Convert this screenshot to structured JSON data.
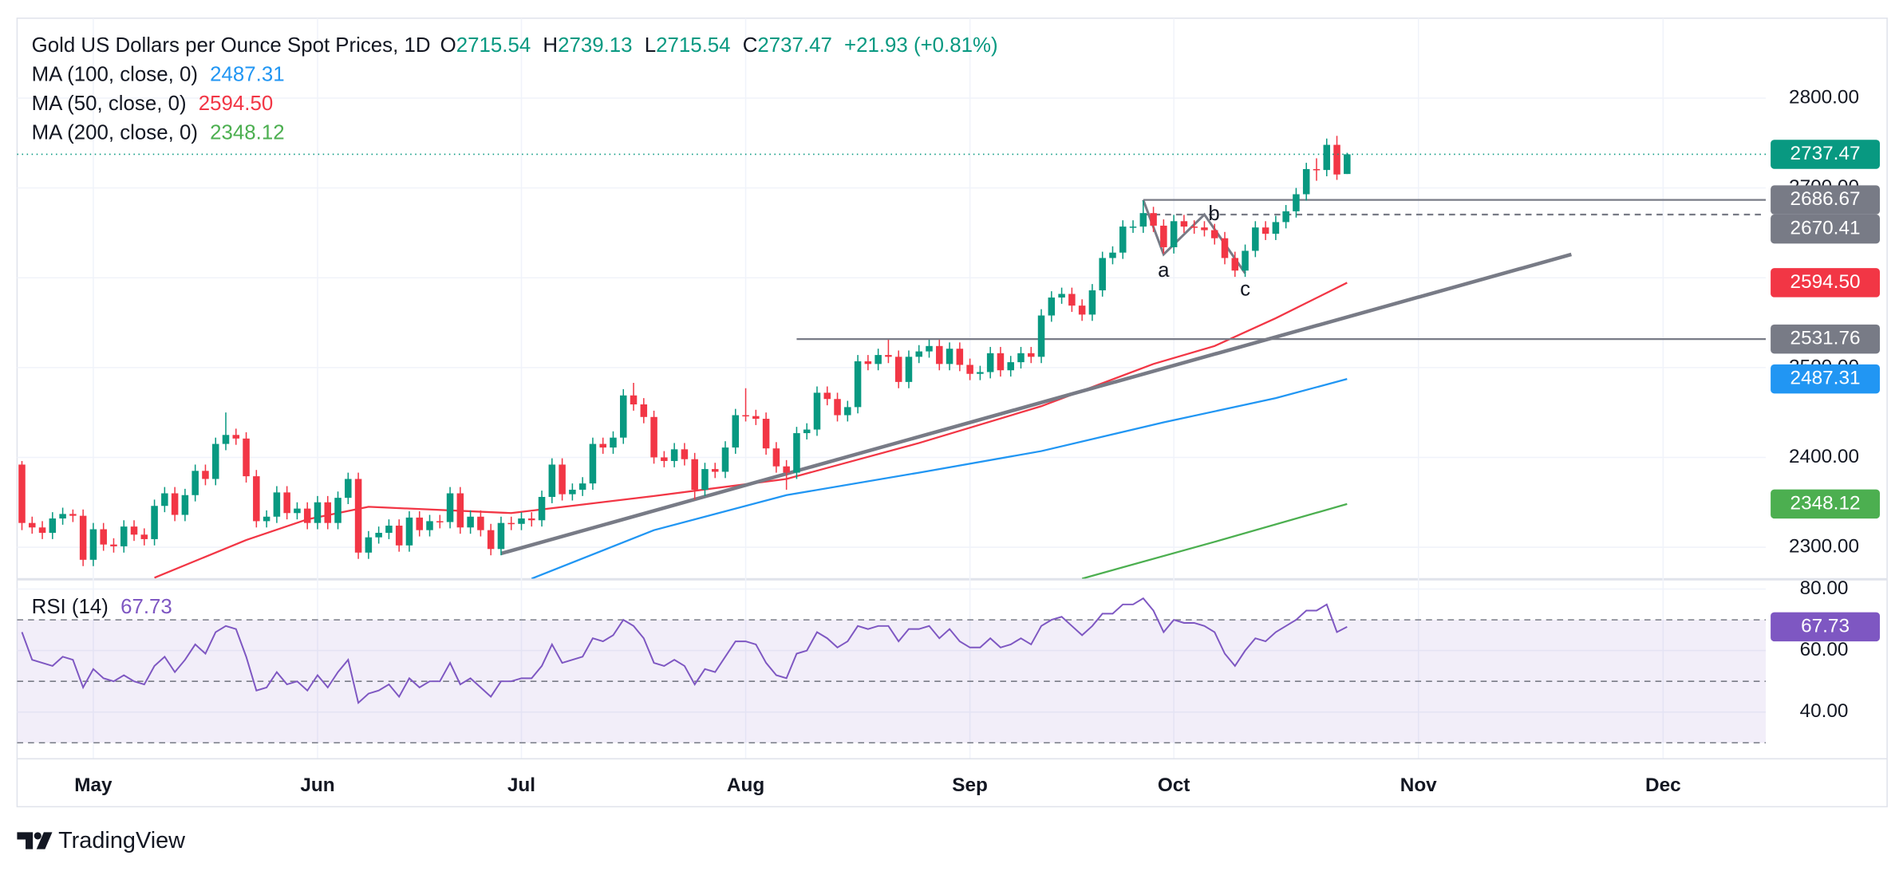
{
  "chart_data": {
    "type": "candlestick",
    "legend": {
      "title": "Gold US Dollars per Ounce Spot Prices, 1D",
      "ohlc_letters": [
        "O",
        "H",
        "L",
        "C"
      ],
      "change": "+21.93 (+0.81%)"
    },
    "up_color": "#089981",
    "down_color": "#f23645",
    "ylim": [
      2265,
      2889
    ],
    "yticks": [
      {
        "value": 2300,
        "label": "2300.00"
      },
      {
        "value": 2400,
        "label": "2400.00"
      },
      {
        "value": 2500,
        "label": "2500.00"
      },
      {
        "value": 2600,
        "label": "2600.00"
      },
      {
        "value": 2700,
        "label": "2700.00"
      },
      {
        "value": 2800,
        "label": "2800.00"
      }
    ],
    "xticks": [
      {
        "value": 7,
        "label": "May"
      },
      {
        "value": 29,
        "label": "Jun"
      },
      {
        "value": 49,
        "label": "Jul"
      },
      {
        "value": 71,
        "label": "Aug"
      },
      {
        "value": 93,
        "label": "Sep"
      },
      {
        "value": 113,
        "label": "Oct"
      },
      {
        "value": 137,
        "label": "Nov"
      },
      {
        "value": 161,
        "label": "Dec"
      }
    ],
    "grid": true,
    "ohlc": [
      [
        2392,
        2396,
        2319,
        2327
      ],
      [
        2327,
        2334,
        2315,
        2322
      ],
      [
        2322,
        2329,
        2309,
        2316
      ],
      [
        2316,
        2339,
        2309,
        2332
      ],
      [
        2332,
        2344,
        2325,
        2337
      ],
      [
        2337,
        2342,
        2328,
        2335
      ],
      [
        2335,
        2342,
        2279,
        2286
      ],
      [
        2286,
        2327,
        2279,
        2320
      ],
      [
        2320,
        2327,
        2296,
        2303
      ],
      [
        2303,
        2310,
        2294,
        2301
      ],
      [
        2301,
        2330,
        2294,
        2323
      ],
      [
        2323,
        2330,
        2307,
        2314
      ],
      [
        2314,
        2321,
        2302,
        2309
      ],
      [
        2309,
        2353,
        2302,
        2346
      ],
      [
        2346,
        2367,
        2339,
        2360
      ],
      [
        2360,
        2367,
        2329,
        2336
      ],
      [
        2336,
        2365,
        2329,
        2358
      ],
      [
        2358,
        2392,
        2351,
        2385
      ],
      [
        2385,
        2392,
        2369,
        2376
      ],
      [
        2376,
        2422,
        2369,
        2415
      ],
      [
        2415,
        2450,
        2408,
        2425
      ],
      [
        2425,
        2432,
        2414,
        2421
      ],
      [
        2421,
        2428,
        2372,
        2379
      ],
      [
        2379,
        2386,
        2322,
        2329
      ],
      [
        2329,
        2341,
        2322,
        2334
      ],
      [
        2334,
        2368,
        2327,
        2361
      ],
      [
        2361,
        2368,
        2331,
        2338
      ],
      [
        2338,
        2350,
        2331,
        2343
      ],
      [
        2343,
        2350,
        2320,
        2327
      ],
      [
        2327,
        2357,
        2320,
        2350
      ],
      [
        2350,
        2357,
        2320,
        2327
      ],
      [
        2327,
        2362,
        2320,
        2355
      ],
      [
        2355,
        2383,
        2348,
        2376
      ],
      [
        2376,
        2383,
        2287,
        2294
      ],
      [
        2294,
        2318,
        2287,
        2311
      ],
      [
        2311,
        2323,
        2304,
        2316
      ],
      [
        2316,
        2331,
        2309,
        2324
      ],
      [
        2324,
        2331,
        2295,
        2302
      ],
      [
        2302,
        2340,
        2295,
        2333
      ],
      [
        2333,
        2340,
        2312,
        2319
      ],
      [
        2319,
        2336,
        2312,
        2329
      ],
      [
        2329,
        2336,
        2321,
        2328
      ],
      [
        2328,
        2367,
        2321,
        2360
      ],
      [
        2360,
        2367,
        2315,
        2322
      ],
      [
        2322,
        2341,
        2315,
        2334
      ],
      [
        2334,
        2341,
        2312,
        2319
      ],
      [
        2319,
        2326,
        2291,
        2298
      ],
      [
        2298,
        2334,
        2291,
        2327
      ],
      [
        2327,
        2334,
        2319,
        2326
      ],
      [
        2326,
        2339,
        2319,
        2332
      ],
      [
        2332,
        2339,
        2323,
        2330
      ],
      [
        2330,
        2363,
        2323,
        2356
      ],
      [
        2356,
        2399,
        2349,
        2392
      ],
      [
        2392,
        2399,
        2352,
        2359
      ],
      [
        2359,
        2371,
        2352,
        2364
      ],
      [
        2364,
        2378,
        2357,
        2371
      ],
      [
        2371,
        2422,
        2364,
        2415
      ],
      [
        2415,
        2422,
        2404,
        2411
      ],
      [
        2411,
        2429,
        2404,
        2422
      ],
      [
        2422,
        2476,
        2415,
        2469
      ],
      [
        2469,
        2483,
        2452,
        2459
      ],
      [
        2459,
        2466,
        2438,
        2445
      ],
      [
        2445,
        2452,
        2393,
        2400
      ],
      [
        2400,
        2407,
        2389,
        2396
      ],
      [
        2396,
        2416,
        2389,
        2409
      ],
      [
        2409,
        2416,
        2391,
        2398
      ],
      [
        2398,
        2405,
        2353,
        2364
      ],
      [
        2364,
        2394,
        2357,
        2387
      ],
      [
        2387,
        2394,
        2377,
        2384
      ],
      [
        2384,
        2418,
        2377,
        2411
      ],
      [
        2411,
        2454,
        2404,
        2447
      ],
      [
        2447,
        2477,
        2440,
        2446
      ],
      [
        2446,
        2453,
        2436,
        2443
      ],
      [
        2443,
        2450,
        2403,
        2410
      ],
      [
        2410,
        2417,
        2383,
        2390
      ],
      [
        2390,
        2397,
        2364,
        2383
      ],
      [
        2383,
        2434,
        2376,
        2427
      ],
      [
        2427,
        2438,
        2420,
        2431
      ],
      [
        2431,
        2479,
        2424,
        2472
      ],
      [
        2472,
        2479,
        2458,
        2465
      ],
      [
        2465,
        2472,
        2440,
        2447
      ],
      [
        2447,
        2463,
        2440,
        2456
      ],
      [
        2456,
        2514,
        2449,
        2507
      ],
      [
        2507,
        2514,
        2497,
        2504
      ],
      [
        2504,
        2521,
        2497,
        2514
      ],
      [
        2514,
        2531,
        2505,
        2512
      ],
      [
        2512,
        2519,
        2477,
        2484
      ],
      [
        2484,
        2519,
        2477,
        2512
      ],
      [
        2512,
        2525,
        2505,
        2518
      ],
      [
        2518,
        2531,
        2511,
        2524
      ],
      [
        2524,
        2531,
        2497,
        2504
      ],
      [
        2504,
        2528,
        2497,
        2521
      ],
      [
        2521,
        2528,
        2496,
        2503
      ],
      [
        2503,
        2510,
        2486,
        2493
      ],
      [
        2493,
        2502,
        2486,
        2495
      ],
      [
        2495,
        2523,
        2488,
        2516
      ],
      [
        2516,
        2523,
        2490,
        2497
      ],
      [
        2497,
        2513,
        2490,
        2506
      ],
      [
        2506,
        2523,
        2499,
        2516
      ],
      [
        2516,
        2523,
        2505,
        2512
      ],
      [
        2512,
        2565,
        2505,
        2558
      ],
      [
        2558,
        2585,
        2551,
        2578
      ],
      [
        2578,
        2589,
        2571,
        2582
      ],
      [
        2582,
        2589,
        2562,
        2569
      ],
      [
        2569,
        2576,
        2552,
        2559
      ],
      [
        2559,
        2593,
        2552,
        2586
      ],
      [
        2586,
        2629,
        2579,
        2622
      ],
      [
        2622,
        2635,
        2615,
        2628
      ],
      [
        2628,
        2664,
        2621,
        2657
      ],
      [
        2657,
        2664,
        2650,
        2657
      ],
      [
        2657,
        2686,
        2650,
        2672
      ],
      [
        2672,
        2679,
        2651,
        2658
      ],
      [
        2658,
        2665,
        2627,
        2634
      ],
      [
        2634,
        2670,
        2627,
        2663
      ],
      [
        2663,
        2670,
        2650,
        2657
      ],
      [
        2657,
        2664,
        2649,
        2656
      ],
      [
        2656,
        2663,
        2646,
        2653
      ],
      [
        2653,
        2660,
        2637,
        2644
      ],
      [
        2644,
        2651,
        2615,
        2622
      ],
      [
        2622,
        2629,
        2601,
        2608
      ],
      [
        2608,
        2637,
        2601,
        2630
      ],
      [
        2630,
        2663,
        2623,
        2656
      ],
      [
        2656,
        2663,
        2642,
        2649
      ],
      [
        2649,
        2669,
        2642,
        2662
      ],
      [
        2662,
        2681,
        2655,
        2674
      ],
      [
        2674,
        2700,
        2667,
        2693
      ],
      [
        2693,
        2728,
        2686,
        2721
      ],
      [
        2721,
        2733,
        2708,
        2720
      ],
      [
        2720,
        2755,
        2713,
        2748
      ],
      [
        2748,
        2758,
        2709,
        2715
      ],
      [
        2715.54,
        2739.13,
        2715.54,
        2737.47
      ]
    ],
    "moving_averages": [
      {
        "name": "MA (100, close, 0)",
        "color": "#2196f3",
        "x": [
          50,
          62,
          75,
          88,
          100,
          112,
          123,
          130
        ],
        "values": [
          2265,
          2319,
          2358,
          2383,
          2407,
          2439,
          2466,
          2487.31
        ],
        "value_labels": [
          null,
          null,
          null,
          null,
          null,
          null,
          null,
          "2487.31"
        ]
      },
      {
        "name": "MA (50, close, 0)",
        "color": "#f23645",
        "x": [
          13,
          22,
          28,
          34,
          48,
          62,
          75,
          88,
          100,
          111,
          117,
          123,
          130
        ],
        "values": [
          2266,
          2308,
          2331,
          2345,
          2338,
          2357,
          2376,
          2416,
          2457,
          2504,
          2524,
          2555,
          2594.5
        ],
        "value_labels": [
          null,
          null,
          null,
          null,
          null,
          null,
          null,
          null,
          null,
          null,
          null,
          null,
          "2594.50"
        ]
      },
      {
        "name": "MA (200, close, 0)",
        "color": "#4caf50",
        "x": [
          104,
          117,
          130
        ],
        "values": [
          2265,
          2306,
          2348.12
        ],
        "value_labels": [
          null,
          null,
          "2348.12"
        ]
      }
    ],
    "levels": [
      {
        "value": 2686.67,
        "start": 110,
        "style": "solid"
      },
      {
        "value": 2670.41,
        "start": 110,
        "style": "dashed"
      },
      {
        "value": 2531.76,
        "start": 76,
        "style": "solid"
      }
    ],
    "drawing_color": "#787b86",
    "trendline": {
      "x": [
        47,
        152
      ],
      "y": [
        2293,
        2626
      ]
    },
    "zigzag": {
      "x": [
        110,
        112,
        116,
        120
      ],
      "y": [
        2686.67,
        2626,
        2670.41,
        2605
      ],
      "labels": [
        null,
        "a",
        "b",
        "c"
      ]
    },
    "rsi": {
      "name": "RSI (14)",
      "color": "#7e57c2",
      "ylim": [
        25,
        83
      ],
      "yticks": [
        {
          "value": 40,
          "label": "40.00"
        },
        {
          "value": 60,
          "label": "60.00"
        },
        {
          "value": 80,
          "label": "80.00"
        }
      ],
      "levels": [
        30,
        50,
        70
      ],
      "values": [
        66,
        57,
        56,
        55,
        58,
        57,
        48,
        54,
        51,
        50,
        52,
        50,
        49,
        55,
        58,
        53,
        57,
        62,
        59,
        66,
        68,
        67,
        58,
        47,
        48,
        53,
        49,
        50,
        47,
        52,
        48,
        53,
        57,
        43,
        46,
        47,
        49,
        45,
        51,
        48,
        50,
        50,
        56,
        49,
        51,
        48,
        45,
        50,
        50,
        51,
        51,
        55,
        62,
        56,
        57,
        58,
        64,
        63,
        65,
        70,
        68,
        64,
        56,
        55,
        57,
        55,
        49,
        54,
        53,
        58,
        63,
        63,
        62,
        56,
        52,
        51,
        59,
        60,
        66,
        64,
        61,
        63,
        68,
        67,
        68,
        68,
        63,
        67,
        67,
        68,
        64,
        67,
        63,
        61,
        61,
        64,
        61,
        62,
        64,
        62,
        68,
        70,
        71,
        68,
        65,
        68,
        72,
        72,
        75,
        75,
        77,
        73,
        66,
        70,
        69,
        69,
        68,
        66,
        59,
        55,
        60,
        64,
        63,
        66,
        68,
        70,
        73,
        73,
        75,
        66,
        67.73
      ]
    },
    "footer": "TradingView"
  }
}
